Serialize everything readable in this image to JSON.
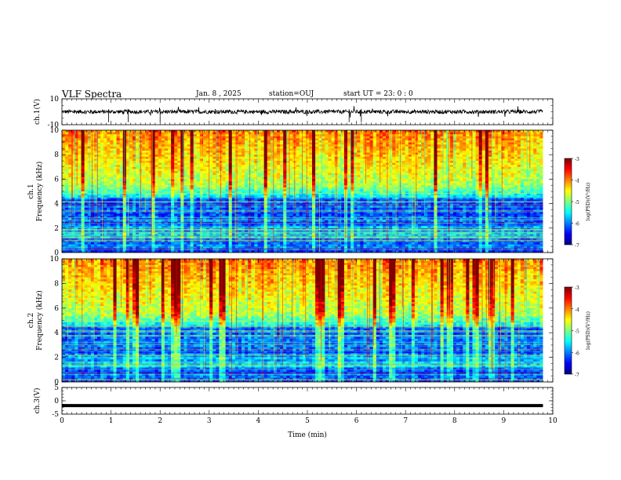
{
  "header": {
    "title": "VLF Spectra",
    "date": "Jan. 8 , 2025",
    "station": "station=OUJ",
    "start_ut": "start UT =  23: 0  : 0"
  },
  "colors": {
    "jet": [
      "#00007f",
      "#0000ff",
      "#007fff",
      "#00ffff",
      "#7fff7f",
      "#ffff00",
      "#ff7f00",
      "#ff0000",
      "#7f0000"
    ]
  },
  "chart_data": [
    {
      "type": "line",
      "panel": "ch1-waveform",
      "ylabel": "ch.1(V)",
      "ylim": [
        -10,
        10
      ],
      "yticks": [
        "10",
        "-10"
      ],
      "x": [
        0,
        10
      ],
      "trace_level": 0,
      "trace_amplitude": 1.5,
      "xlim": [
        0,
        10
      ]
    },
    {
      "type": "heatmap",
      "panel": "ch1-spectrogram",
      "ylabel": "ch.1 Frequency (kHz)",
      "ylabel_lines": [
        "ch.1",
        "Frequency (kHz)"
      ],
      "ylim": [
        0,
        10
      ],
      "yticks": [
        "0",
        "2",
        "4",
        "6",
        "8",
        "10"
      ],
      "xlim": [
        0,
        9.8
      ],
      "colorbar": {
        "label": "log(PSD)(V²/Hz)",
        "range": [
          -7,
          -3
        ],
        "ticks": [
          "-3",
          "-4",
          "-5",
          "-6",
          "-7"
        ]
      }
    },
    {
      "type": "heatmap",
      "panel": "ch2-spectrogram",
      "ylabel": "ch.2 Frequency (kHz)",
      "ylabel_lines": [
        "ch.2",
        "Frequency (kHz)"
      ],
      "ylim": [
        0,
        10
      ],
      "yticks": [
        "0",
        "2",
        "4",
        "6",
        "8",
        "10"
      ],
      "xlim": [
        0,
        9.8
      ],
      "colorbar": {
        "label": "log(PSD)(V²/Hz)",
        "range": [
          -7,
          -3
        ],
        "ticks": [
          "-3",
          "-4",
          "-5",
          "-6",
          "-7"
        ]
      }
    },
    {
      "type": "line",
      "panel": "ch3-waveform",
      "ylabel": "ch.3(V)",
      "ylim": [
        -5,
        5
      ],
      "yticks": [
        "5",
        "0",
        "-5"
      ],
      "trace_level": -1.8,
      "x": [
        0,
        9.8
      ],
      "xlim": [
        0,
        10
      ]
    }
  ],
  "xaxis": {
    "label": "Time (min)",
    "ticks": [
      "0",
      "1",
      "2",
      "3",
      "4",
      "5",
      "6",
      "7",
      "8",
      "9",
      "10"
    ],
    "range": [
      0,
      10
    ]
  }
}
